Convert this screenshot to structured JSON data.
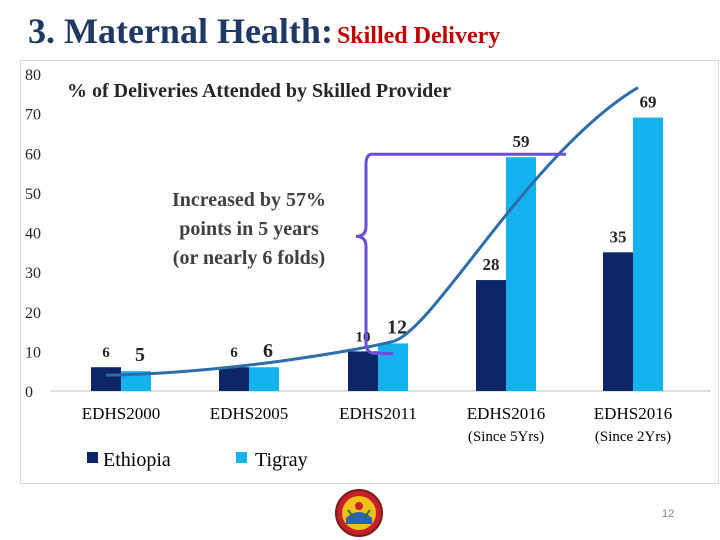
{
  "slide": {
    "title_main": "3. Maternal Health:",
    "title_sub": "Skilled Delivery",
    "page_number": "12"
  },
  "colors": {
    "ethiopia": "#0c2566",
    "tigray": "#15b0ee",
    "trend": "#2d6da8",
    "brace": "#6a4ed8",
    "title_main": "#1f3864",
    "title_sub": "#c00000"
  },
  "chart_data": {
    "type": "bar",
    "title": "% of Deliveries Attended by Skilled Provider",
    "categories": [
      "EDHS2000",
      "EDHS2005",
      "EDHS2011",
      "EDHS2016\n(Since 5Yrs)",
      "EDHS2016\n(Since 2Yrs)"
    ],
    "series": [
      {
        "name": "Ethiopia",
        "values": [
          6,
          6,
          10,
          28,
          35
        ],
        "labels": [
          "6",
          "6",
          "10",
          "28",
          "35"
        ]
      },
      {
        "name": "Tigray",
        "values": [
          5,
          6,
          12,
          59,
          69
        ],
        "labels": [
          "5",
          "6",
          "12",
          "59",
          "69"
        ]
      }
    ],
    "ylim": [
      0,
      80
    ],
    "yticks": [
      "0",
      "10",
      "20",
      "30",
      "40",
      "50",
      "60",
      "70",
      "80"
    ],
    "grid": false,
    "legend": "bottom-left",
    "annotation": "Increased by 57% points in 5 years (or nearly 6 folds)",
    "annotation_lines": [
      "Increased by 57%",
      "points in 5 years",
      "(or nearly 6 folds)"
    ]
  }
}
